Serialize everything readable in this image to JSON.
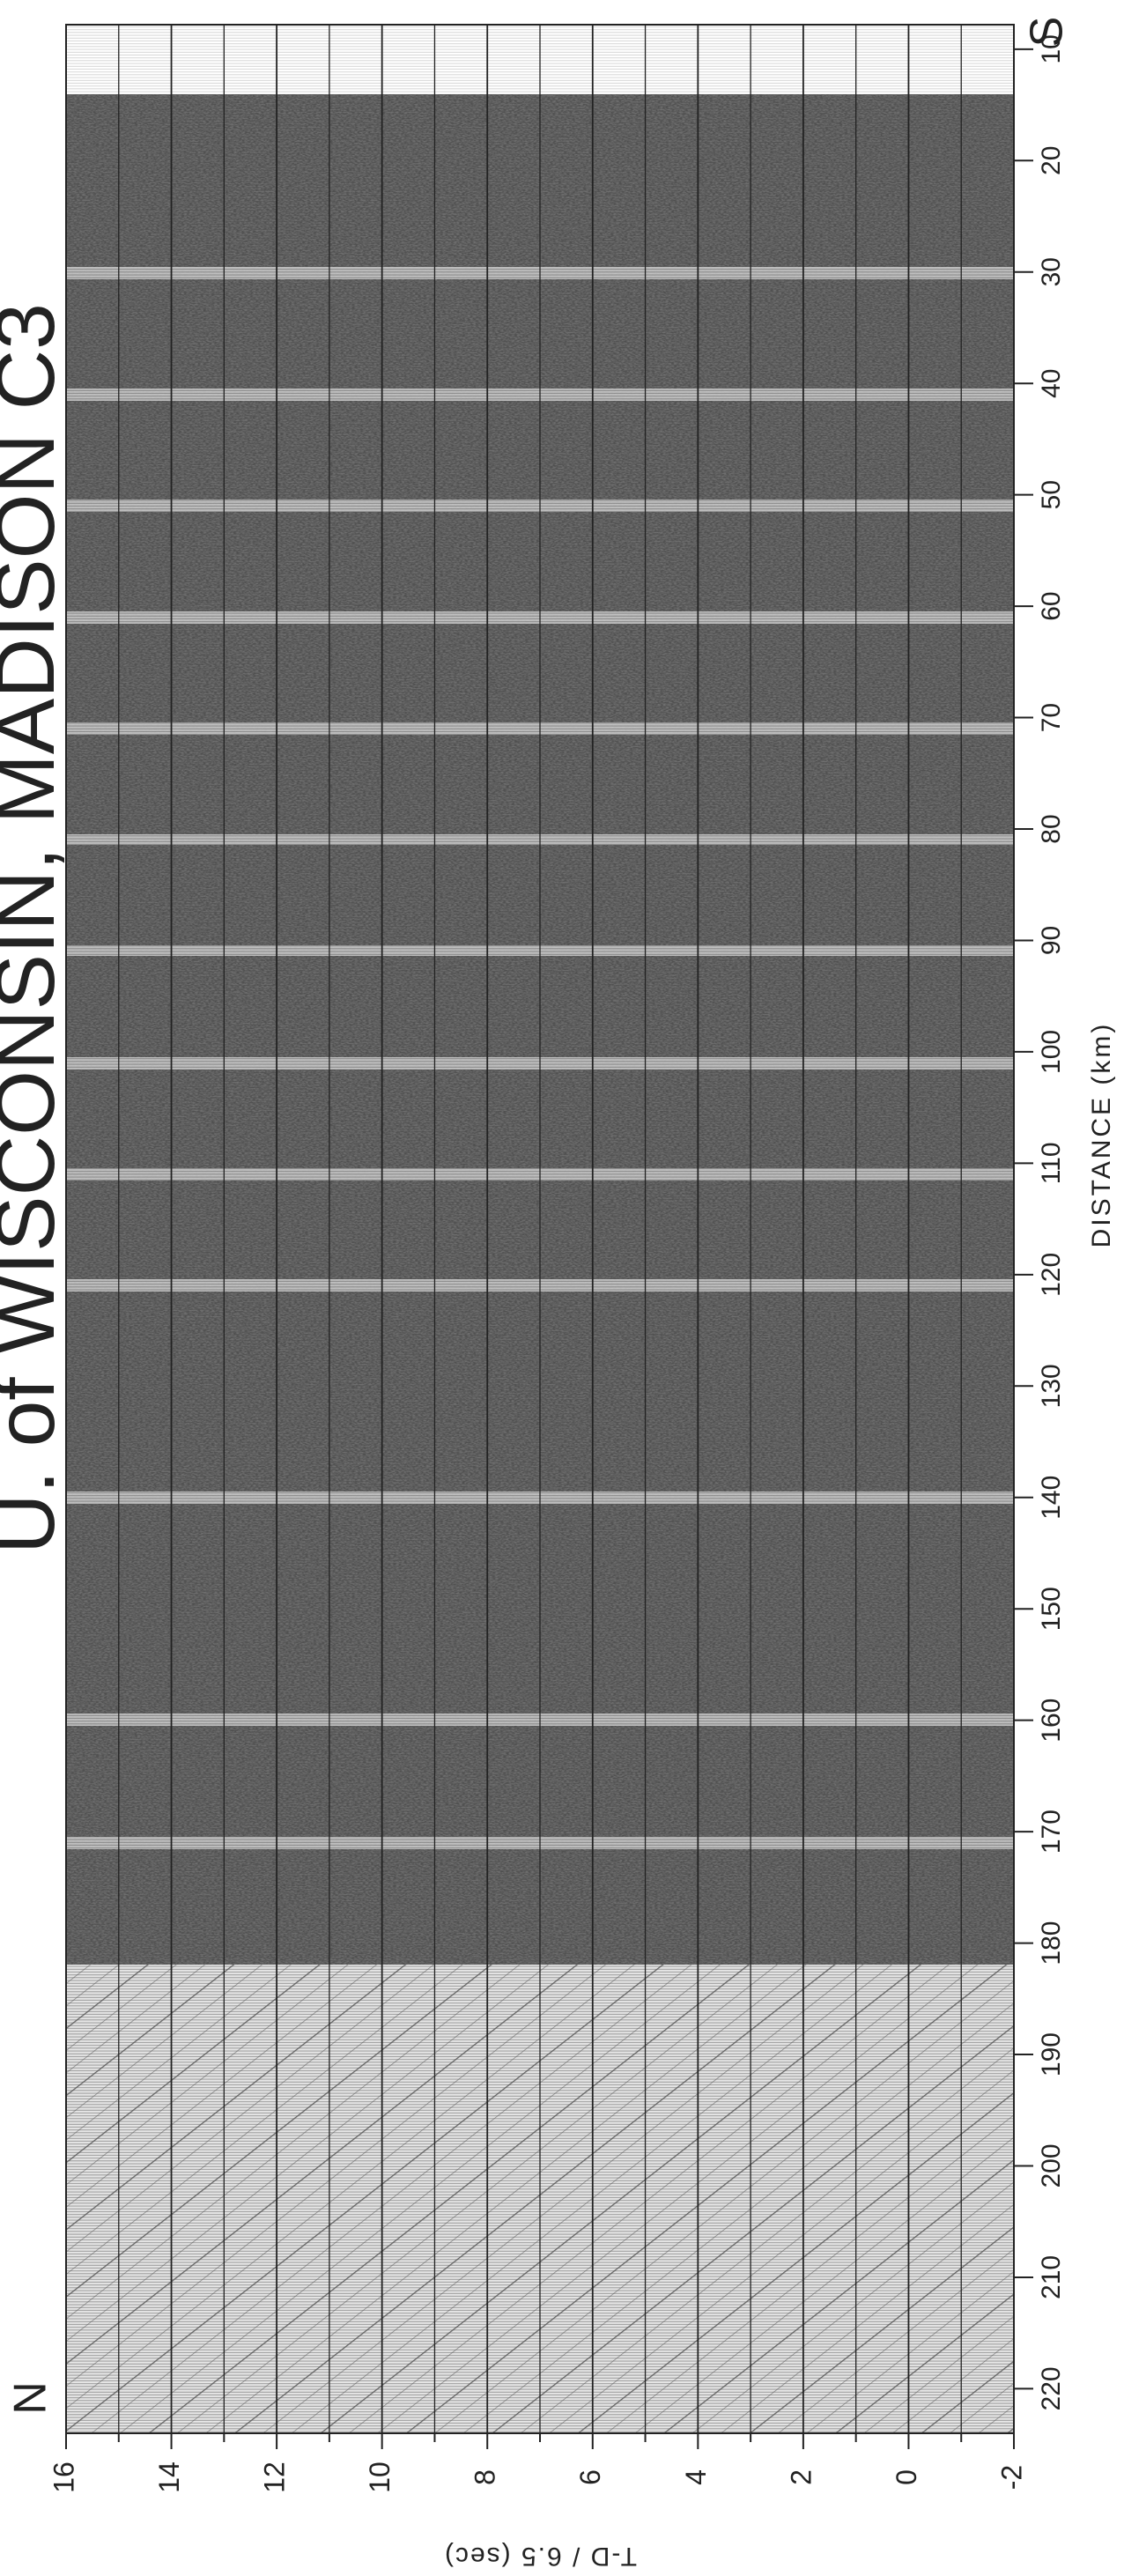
{
  "chart_data": {
    "type": "record-section",
    "title": "U. of WISCONSIN, MADISON C3",
    "south_label": "S",
    "north_label": "N",
    "x_label": "DISTANCE (km)",
    "y_label": "T-D / 6.5 (sec)",
    "xlim": [
      7.8,
      224
    ],
    "xticks": [
      10,
      20,
      30,
      40,
      50,
      60,
      70,
      80,
      90,
      100,
      110,
      120,
      130,
      140,
      150,
      160,
      170,
      180,
      190,
      200,
      210,
      220
    ],
    "ylim": [
      -2,
      16
    ],
    "y_inverted": true,
    "yticks": [
      16,
      14,
      12,
      10,
      8,
      6,
      4,
      2,
      0,
      -2
    ],
    "minor_yticks": [
      15,
      13,
      11,
      9,
      7,
      5,
      3,
      1,
      -1
    ],
    "grid": true
  }
}
